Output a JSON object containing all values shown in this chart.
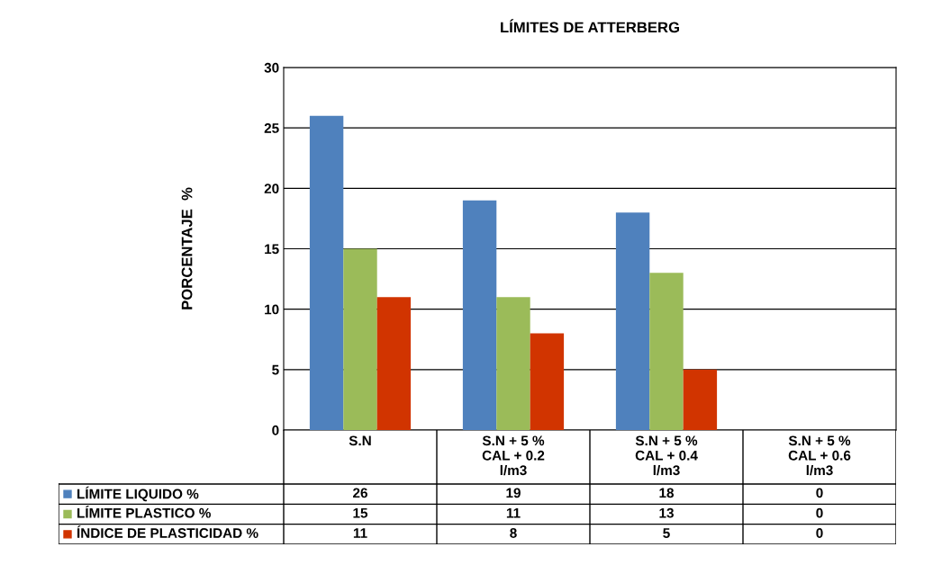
{
  "chart_data": {
    "type": "bar",
    "title": "LÍMITES DE ATTERBERG",
    "ylabel": "PORCENTAJE  %",
    "categories": [
      "S.N",
      "S.N + 5 %\nCAL + 0.2\nl/m3",
      "S.N + 5 %\nCAL + 0.4\nl/m3",
      "S.N + 5 %\nCAL + 0.6\nl/m3"
    ],
    "series": [
      {
        "name": "LÍMITE LIQUIDO %",
        "color": "#4f81bd",
        "values": [
          26,
          19,
          18,
          0
        ]
      },
      {
        "name": "LÍMITE PLASTICO %",
        "color": "#9bbb59",
        "values": [
          15,
          11,
          13,
          0
        ]
      },
      {
        "name": "ÍNDICE DE PLASTICIDAD %",
        "color": "#d13400",
        "values": [
          11,
          8,
          5,
          0
        ]
      }
    ],
    "ylim": [
      0,
      30
    ],
    "yticks": [
      0,
      5,
      10,
      15,
      20,
      25,
      30
    ],
    "grid": "y",
    "legend": "bottom",
    "data_labels": true
  }
}
